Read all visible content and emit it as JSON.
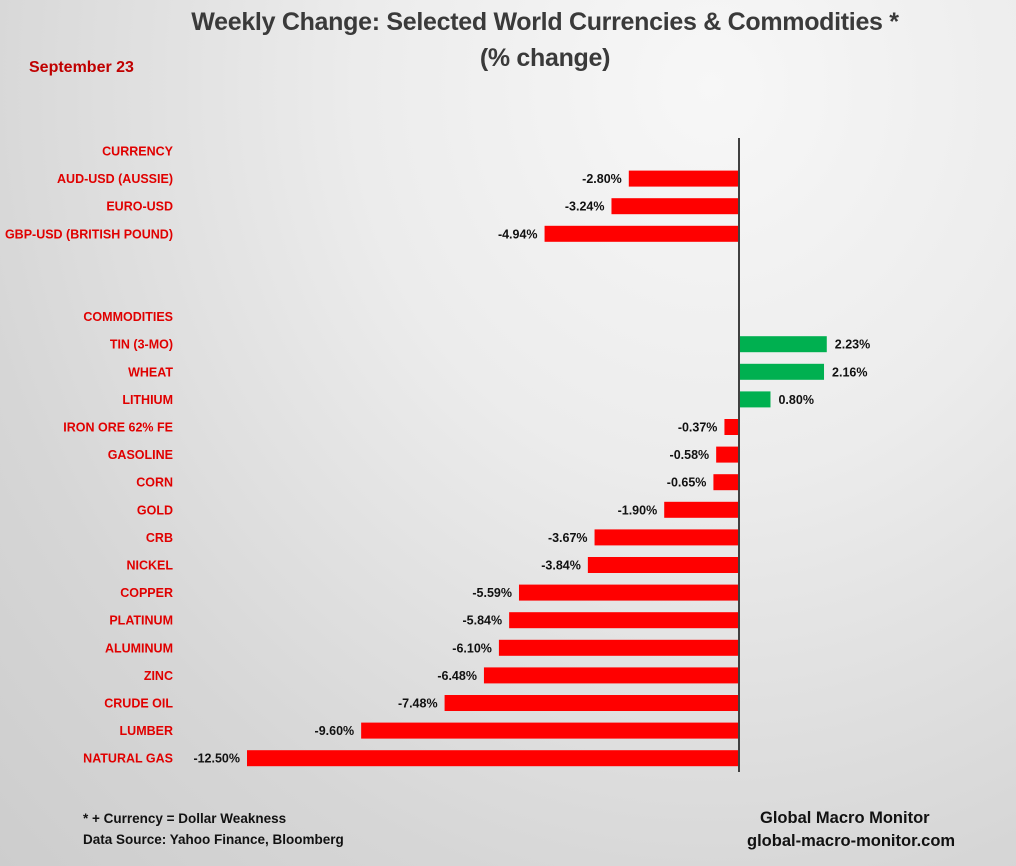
{
  "header": {
    "title": "Weekly Change: Selected World Currencies & Commodities *",
    "subtitle": "(% change)",
    "date": "September 23"
  },
  "footer": {
    "note": "* + Currency = Dollar Weakness",
    "source": "Data Source:  Yahoo Finance, Bloomberg",
    "brand": "Global Macro Monitor",
    "website": "global-macro-monitor.com"
  },
  "colors": {
    "negative": "#ff0000",
    "positive": "#00b050",
    "category_label": "#e00000",
    "date": "#c00000",
    "axis": "#404040"
  },
  "chart_data": {
    "type": "bar",
    "orientation": "horizontal",
    "title": "Weekly Change: Selected World Currencies & Commodities *",
    "subtitle": "(% change)",
    "xlabel": "",
    "ylabel": "",
    "grid": false,
    "legend": "none",
    "value_format": "percent_2dp",
    "categories": [
      "CURRENCY",
      "AUD-USD (AUSSIE)",
      "EURO-USD",
      "GBP-USD (BRITISH POUND)",
      "",
      "",
      "COMMODITIES",
      "TIN (3-MO)",
      "WHEAT",
      "LITHIUM",
      "IRON ORE 62% FE",
      "GASOLINE",
      "CORN",
      "GOLD",
      "CRB",
      "NICKEL",
      "COPPER",
      "PLATINUM",
      "ALUMINUM",
      "ZINC",
      "CRUDE OIL",
      "LUMBER",
      "NATURAL GAS"
    ],
    "values": [
      null,
      -2.8,
      -3.24,
      -4.94,
      null,
      null,
      null,
      2.23,
      2.16,
      0.8,
      -0.37,
      -0.58,
      -0.65,
      -1.9,
      -3.67,
      -3.84,
      -5.59,
      -5.84,
      -6.1,
      -6.48,
      -7.48,
      -9.6,
      -12.5
    ],
    "data_labels": [
      "",
      "-2.80%",
      "-3.24%",
      "-4.94%",
      "",
      "",
      "",
      "2.23%",
      "2.16%",
      "0.80%",
      "-0.37%",
      "-0.58%",
      "-0.65%",
      "-1.90%",
      "-3.67%",
      "-3.84%",
      "-5.59%",
      "-5.84%",
      "-6.10%",
      "-6.48%",
      "-7.48%",
      "-9.60%",
      "-12.50%"
    ],
    "xlim": [
      -12.5,
      2.23
    ]
  }
}
